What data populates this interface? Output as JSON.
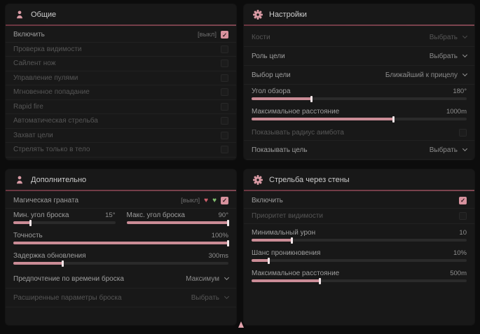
{
  "colors": {
    "background": "#0c0c0c",
    "panel": "#181818",
    "header_divider": "#733c46",
    "accent_pink": "#d99aa4",
    "slider_fill": "#ca8c96",
    "text": "#9e9e9e",
    "text_dim": "#565656",
    "checkbox_checked": "#d7929e",
    "heart_off": "#cf5f6b",
    "heart_on": "#7fbb6d"
  },
  "icons": {
    "check": "✓",
    "heart": "♥"
  },
  "panels": {
    "general": {
      "title": "Общие",
      "rows": [
        {
          "label": "Включить",
          "badge": "[выкл]"
        },
        {
          "label": "Проверка видимости"
        },
        {
          "label": "Сайлент нож"
        },
        {
          "label": "Управление пулями"
        },
        {
          "label": "Мгновенное попадание"
        },
        {
          "label": "Rapid fire"
        },
        {
          "label": "Автоматическая стрельба"
        },
        {
          "label": "Захват цели"
        },
        {
          "label": "Стрелять только в тело"
        }
      ]
    },
    "settings": {
      "title": "Настройки",
      "bones": {
        "label": "Кости",
        "value": "Выбрать"
      },
      "target_role": {
        "label": "Роль цели",
        "value": "Выбрать"
      },
      "target_select": {
        "label": "Выбор цели",
        "value": "Ближайший к прицелу"
      },
      "fov": {
        "label": "Угол обзора",
        "value": "180°",
        "fill": 28
      },
      "max_distance": {
        "label": "Максимальное расстояние",
        "value": "1000m",
        "fill": 66
      },
      "show_radius": {
        "label": "Показывать радиус аимбота"
      },
      "show_target": {
        "label": "Показывать цель",
        "value": "Выбрать"
      }
    },
    "additional": {
      "title": "Дополнительно",
      "magic_grenade": {
        "label": "Магическая граната",
        "badge": "[выкл]"
      },
      "min_throw_angle": {
        "label": "Мин. угол броска",
        "value": "15°",
        "fill": 17
      },
      "max_throw_angle": {
        "label": "Макс. угол броска",
        "value": "90°",
        "fill": 100
      },
      "accuracy": {
        "label": "Точность",
        "value": "100%",
        "fill": 100
      },
      "update_delay": {
        "label": "Задержка обновления",
        "value": "300ms",
        "fill": 23
      },
      "throw_time_pref": {
        "label": "Предпочтение по времени броска",
        "value": "Максимум"
      },
      "extended_params": {
        "label": "Расширенные параметры броска",
        "value": "Выбрать"
      }
    },
    "wallbang": {
      "title": "Стрельба через стены",
      "enable": {
        "label": "Включить"
      },
      "visibility_priority": {
        "label": "Приоритет видимости"
      },
      "min_damage": {
        "label": "Минимальный урон",
        "value": "10",
        "fill": 19
      },
      "penetration_chance": {
        "label": "Шанс проникновения",
        "value": "10%",
        "fill": 8
      },
      "max_distance": {
        "label": "Максимальное расстояние",
        "value": "500m",
        "fill": 32
      }
    }
  }
}
